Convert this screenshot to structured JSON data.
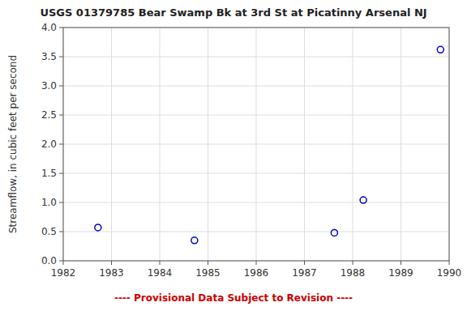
{
  "chart_data": {
    "type": "scatter",
    "title": "USGS 01379785 Bear Swamp Bk at 3rd St at Picatinny Arsenal NJ",
    "y_label": "Streamflow, in cubic feet per second",
    "x": [
      1982.72,
      1984.72,
      1987.62,
      1988.22,
      1989.82
    ],
    "values": [
      0.57,
      0.35,
      0.48,
      1.04,
      3.62
    ],
    "color": "#0000cc",
    "marker": "open-circle",
    "xlim": [
      1982,
      1990
    ],
    "ylim": [
      0.0,
      4.0
    ],
    "xticks": [
      1982,
      1983,
      1984,
      1985,
      1986,
      1987,
      1988,
      1989,
      1990
    ],
    "yticks": [
      {
        "value": 0.0,
        "label": "0.0"
      },
      0.5,
      {
        "value": 1.0,
        "label": "1.0"
      },
      1.5,
      {
        "value": 2.0,
        "label": "2.0"
      },
      2.5,
      {
        "value": 3.0,
        "label": "3.0"
      },
      3.5,
      {
        "value": 4.0,
        "label": "4.0"
      }
    ],
    "grid": true,
    "annotations": [
      {
        "text": "---- Provisional Data Subject to Revision ----",
        "color": "#cc0000"
      }
    ]
  }
}
